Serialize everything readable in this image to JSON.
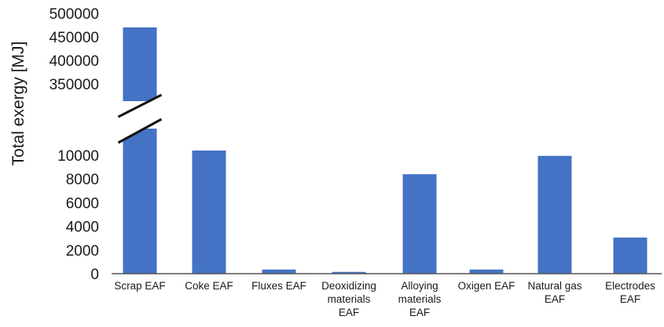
{
  "chart_data": {
    "type": "bar",
    "ylabel": "Total exergy [MJ]",
    "xlabel": "",
    "title": "",
    "axis_break": {
      "lower_range": [
        0,
        11000
      ],
      "upper_range": [
        330000,
        500000
      ]
    },
    "lower_ticks": [
      0,
      2000,
      4000,
      6000,
      8000,
      10000
    ],
    "upper_ticks": [
      350000,
      400000,
      450000,
      500000
    ],
    "categories": [
      [
        "Scrap EAF"
      ],
      [
        "Coke EAF"
      ],
      [
        "Fluxes EAF"
      ],
      [
        "Deoxidizing",
        "materials",
        "EAF"
      ],
      [
        "Alloying",
        "materials",
        "EAF"
      ],
      [
        "Oxigen EAF"
      ],
      [
        "Natural gas",
        "EAF"
      ],
      [
        "Electrodes",
        "EAF"
      ]
    ],
    "values": [
      470000,
      10400,
      350,
      150,
      8400,
      350,
      9950,
      3050
    ],
    "colors": {
      "bar": "#4472C4",
      "axis": "#555555"
    },
    "grid": false,
    "legend": "none"
  }
}
